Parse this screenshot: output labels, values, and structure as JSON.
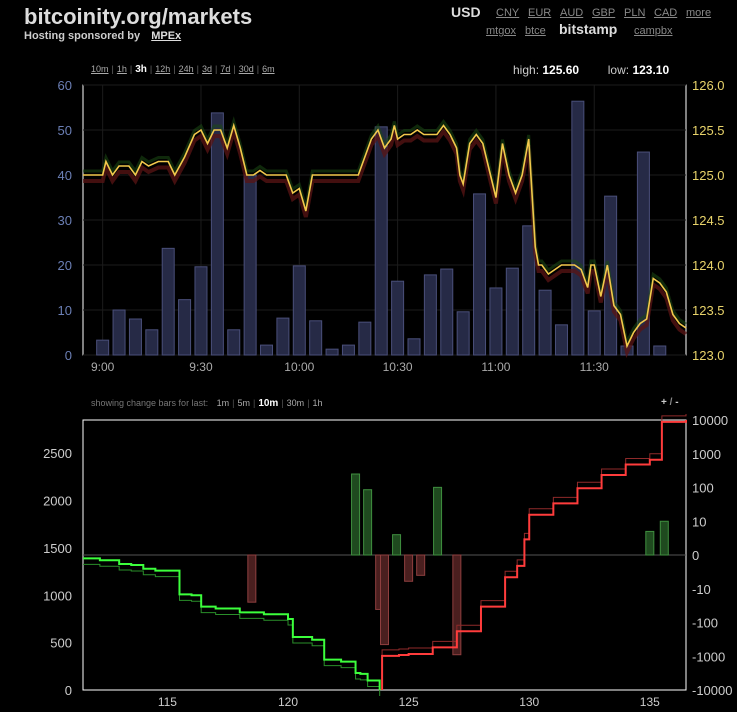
{
  "header": {
    "title": "bitcoinity.org/markets",
    "sponsor_label": "Hosting sponsored by",
    "sponsor_link": "MPEx",
    "currency": "USD",
    "currencies": [
      "CNY",
      "EUR",
      "AUD",
      "GBP",
      "PLN",
      "CAD",
      "more"
    ],
    "exchanges": [
      "mtgox",
      "btce"
    ],
    "active_exchange": "bitstamp",
    "exchanges_after": [
      "campbx"
    ]
  },
  "time_ranges": [
    "10m",
    "1h",
    "3h",
    "12h",
    "24h",
    "3d",
    "7d",
    "30d",
    "6m"
  ],
  "active_time_range": "3h",
  "stats": {
    "high_label": "high:",
    "high": "125.60",
    "low_label": "low:",
    "low": "123.10"
  },
  "change_bars": {
    "label": "showing change bars for last:",
    "options": [
      "1m",
      "5m",
      "10m",
      "30m",
      "1h"
    ],
    "active": "10m"
  },
  "zoom": {
    "plus": "+",
    "minus": "-"
  },
  "chart_data": [
    {
      "type": "line",
      "x_ticks": [
        "9:00",
        "9:30",
        "10:00",
        "10:30",
        "11:00",
        "11:30"
      ],
      "y_left_ticks": [
        "0",
        "10",
        "20",
        "30",
        "40",
        "50",
        "60"
      ],
      "y_right_ticks": [
        "123.0",
        "123.5",
        "124.0",
        "124.5",
        "125.0",
        "125.5",
        "126.0"
      ],
      "y_left_range": [
        0,
        60
      ],
      "y_right_range": [
        123.0,
        126.0
      ],
      "x_range_minutes": [
        -6,
        178
      ],
      "volume_bars": [
        {
          "t": 0,
          "v": 3.3
        },
        {
          "t": 5,
          "v": 10
        },
        {
          "t": 10,
          "v": 8
        },
        {
          "t": 15,
          "v": 5.6
        },
        {
          "t": 20,
          "v": 23.7
        },
        {
          "t": 25,
          "v": 12.3
        },
        {
          "t": 30,
          "v": 19.6
        },
        {
          "t": 35,
          "v": 53.8
        },
        {
          "t": 40,
          "v": 5.6
        },
        {
          "t": 45,
          "v": 40
        },
        {
          "t": 50,
          "v": 2.2
        },
        {
          "t": 55,
          "v": 8.2
        },
        {
          "t": 60,
          "v": 19.8
        },
        {
          "t": 65,
          "v": 7.6
        },
        {
          "t": 70,
          "v": 1.3
        },
        {
          "t": 75,
          "v": 2.2
        },
        {
          "t": 80,
          "v": 7.3
        },
        {
          "t": 85,
          "v": 50.7
        },
        {
          "t": 90,
          "v": 16.4
        },
        {
          "t": 95,
          "v": 3.6
        },
        {
          "t": 100,
          "v": 17.8
        },
        {
          "t": 105,
          "v": 19.1
        },
        {
          "t": 110,
          "v": 9.6
        },
        {
          "t": 115,
          "v": 35.8
        },
        {
          "t": 120,
          "v": 14.9
        },
        {
          "t": 125,
          "v": 19.3
        },
        {
          "t": 130,
          "v": 28.7
        },
        {
          "t": 135,
          "v": 14.4
        },
        {
          "t": 140,
          "v": 6.7
        },
        {
          "t": 145,
          "v": 56.4
        },
        {
          "t": 150,
          "v": 9.8
        },
        {
          "t": 155,
          "v": 35.3
        },
        {
          "t": 160,
          "v": 2.0
        },
        {
          "t": 165,
          "v": 45.1
        },
        {
          "t": 170,
          "v": 2.0
        }
      ],
      "price_line": [
        [
          -6,
          125.0
        ],
        [
          0,
          125.0
        ],
        [
          1,
          125.15
        ],
        [
          3,
          125.0
        ],
        [
          5,
          125.1
        ],
        [
          8,
          125.1
        ],
        [
          10,
          125.0
        ],
        [
          12,
          125.15
        ],
        [
          14,
          125.1
        ],
        [
          17,
          125.15
        ],
        [
          20,
          125.15
        ],
        [
          22,
          125.0
        ],
        [
          25,
          125.2
        ],
        [
          28,
          125.45
        ],
        [
          30,
          125.5
        ],
        [
          32,
          125.35
        ],
        [
          34,
          125.5
        ],
        [
          36,
          125.5
        ],
        [
          38,
          125.3
        ],
        [
          40,
          125.55
        ],
        [
          42,
          125.3
        ],
        [
          44,
          125.0
        ],
        [
          46,
          125.0
        ],
        [
          48,
          125.05
        ],
        [
          50,
          125.0
        ],
        [
          52,
          125.0
        ],
        [
          54,
          125.0
        ],
        [
          56,
          125.0
        ],
        [
          58,
          124.8
        ],
        [
          60,
          124.85
        ],
        [
          62,
          124.6
        ],
        [
          64,
          125.0
        ],
        [
          66,
          125.0
        ],
        [
          70,
          125.0
        ],
        [
          74,
          125.0
        ],
        [
          78,
          125.0
        ],
        [
          82,
          125.4
        ],
        [
          84,
          125.5
        ],
        [
          86,
          125.3
        ],
        [
          88,
          125.4
        ],
        [
          89,
          125.55
        ],
        [
          90,
          125.4
        ],
        [
          92,
          125.45
        ],
        [
          94,
          125.45
        ],
        [
          96,
          125.5
        ],
        [
          98,
          125.45
        ],
        [
          100,
          125.45
        ],
        [
          102,
          125.45
        ],
        [
          104,
          125.55
        ],
        [
          106,
          125.45
        ],
        [
          108,
          125.3
        ],
        [
          109,
          125.0
        ],
        [
          110,
          124.9
        ],
        [
          112,
          125.35
        ],
        [
          114,
          125.45
        ],
        [
          116,
          125.35
        ],
        [
          118,
          125.05
        ],
        [
          120,
          124.75
        ],
        [
          122,
          125.35
        ],
        [
          124,
          125.0
        ],
        [
          126,
          124.8
        ],
        [
          128,
          125.0
        ],
        [
          130,
          125.4
        ],
        [
          132,
          124.2
        ],
        [
          133,
          124.0
        ],
        [
          134,
          124.0
        ],
        [
          136,
          123.9
        ],
        [
          140,
          124.0
        ],
        [
          144,
          124.0
        ],
        [
          146,
          123.95
        ],
        [
          148,
          123.75
        ],
        [
          149,
          124.0
        ],
        [
          150,
          124.0
        ],
        [
          152,
          123.65
        ],
        [
          154,
          124.0
        ],
        [
          156,
          123.55
        ],
        [
          158,
          123.45
        ],
        [
          160,
          123.1
        ],
        [
          162,
          123.25
        ],
        [
          164,
          123.35
        ],
        [
          166,
          123.4
        ],
        [
          168,
          123.85
        ],
        [
          170,
          123.8
        ],
        [
          172,
          123.7
        ],
        [
          174,
          123.45
        ],
        [
          176,
          123.35
        ],
        [
          178,
          123.3
        ]
      ]
    },
    {
      "type": "area",
      "x_ticks": [
        "115",
        "120",
        "125",
        "130",
        "135"
      ],
      "y_left_ticks": [
        "0",
        "500",
        "1000",
        "1500",
        "2000",
        "2500"
      ],
      "y_right_ticks": [
        "-10000",
        "-1000",
        "-100",
        "-10",
        "0",
        "10",
        "100",
        "1000",
        "10000"
      ],
      "x_range": [
        111.5,
        136.5
      ],
      "y_left_range": [
        0,
        2850
      ],
      "bids_depth": [
        [
          111.5,
          1390
        ],
        [
          112.2,
          1370
        ],
        [
          113.0,
          1330
        ],
        [
          113.5,
          1320
        ],
        [
          114.0,
          1280
        ],
        [
          114.5,
          1260
        ],
        [
          115.5,
          1010
        ],
        [
          116.0,
          1000
        ],
        [
          116.4,
          880
        ],
        [
          117.0,
          860
        ],
        [
          118.0,
          820
        ],
        [
          119.0,
          800
        ],
        [
          120.0,
          750
        ],
        [
          120.2,
          560
        ],
        [
          121.0,
          530
        ],
        [
          121.5,
          320
        ],
        [
          122.2,
          300
        ],
        [
          122.8,
          180
        ],
        [
          123.0,
          170
        ],
        [
          123.3,
          100
        ],
        [
          123.8,
          0
        ]
      ],
      "asks_depth": [
        [
          123.9,
          0
        ],
        [
          123.9,
          360
        ],
        [
          124.6,
          370
        ],
        [
          125.0,
          380
        ],
        [
          126.0,
          450
        ],
        [
          127.0,
          620
        ],
        [
          128.0,
          880
        ],
        [
          129.0,
          1190
        ],
        [
          129.5,
          1310
        ],
        [
          129.8,
          1590
        ],
        [
          130.0,
          1850
        ],
        [
          131.0,
          1970
        ],
        [
          132.0,
          2130
        ],
        [
          133.0,
          2270
        ],
        [
          134.0,
          2380
        ],
        [
          135.0,
          2430
        ],
        [
          135.5,
          2830
        ],
        [
          136.5,
          2850
        ]
      ],
      "change_bars": [
        {
          "x": 118.5,
          "v": -24
        },
        {
          "x": 122.8,
          "v": 250
        },
        {
          "x": 123.3,
          "v": 85
        },
        {
          "x": 123.8,
          "v": -40
        },
        {
          "x": 124.0,
          "v": -450
        },
        {
          "x": 124.5,
          "v": 3
        },
        {
          "x": 125.0,
          "v": -5
        },
        {
          "x": 125.5,
          "v": -3
        },
        {
          "x": 126.2,
          "v": 100
        },
        {
          "x": 127.0,
          "v": -900
        },
        {
          "x": 135.0,
          "v": 4
        },
        {
          "x": 135.6,
          "v": 9
        }
      ]
    }
  ]
}
